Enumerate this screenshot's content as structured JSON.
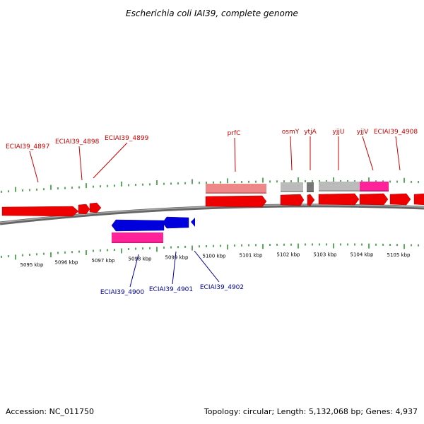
{
  "title": "Escherichia coli IAI39, complete genome",
  "footer": {
    "accession": "Accession: NC_011750",
    "summary": "Topology: circular; Length: 5,132,068 bp; Genes: 4,937"
  },
  "colors": {
    "backbone": "#888888",
    "tick": "#118811",
    "forward_gene": "#ee0000",
    "reverse_gene": "#0000dd",
    "forward_label": "#cc0000",
    "reverse_label": "#000099",
    "rna": "#ff2299",
    "pseudo_light": "#ee8888",
    "misc_feature": "#bbbbbb",
    "misc_feature_dark": "#777777"
  },
  "scale_labels": [
    "5095 kbp",
    "5096 kbp",
    "5097 kbp",
    "5098 kbp",
    "5099 kbp",
    "5100 kbp",
    "5101 kbp",
    "5102 kbp",
    "5103 kbp",
    "5104 kbp",
    "5105 kbp"
  ],
  "forward_gene_labels": [
    "ECIAI39_4897",
    "ECIAI39_4898",
    "ECIAI39_4899",
    "prfC",
    "osmY",
    "ytjA",
    "yjjU",
    "yjjV",
    "ECIAI39_4908"
  ],
  "reverse_gene_labels": [
    "ECIAI39_4900",
    "ECIAI39_4901",
    "ECIAI39_4902"
  ]
}
